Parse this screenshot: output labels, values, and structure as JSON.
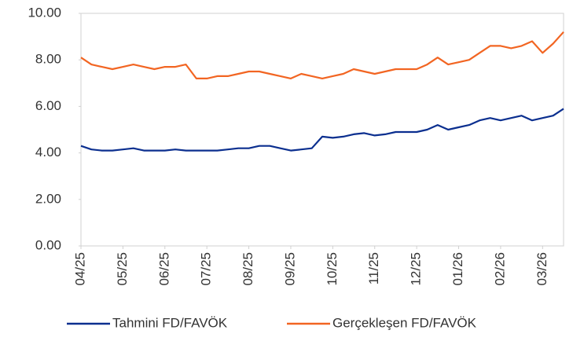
{
  "chart_data": {
    "type": "line",
    "categories": [
      "04/25",
      null,
      null,
      null,
      "05/25",
      null,
      null,
      null,
      "06/25",
      null,
      null,
      null,
      "07/25",
      null,
      null,
      null,
      "08/25",
      null,
      null,
      null,
      "09/25",
      null,
      null,
      null,
      "10/25",
      null,
      null,
      null,
      "11/25",
      null,
      null,
      null,
      "12/25",
      null,
      null,
      null,
      "01/26",
      null,
      null,
      null,
      "02/26",
      null,
      null,
      null,
      "03/26",
      null,
      null
    ],
    "series": [
      {
        "name": "Tahmini FD/FAVÖK",
        "color": "#0b2f8f",
        "values": [
          4.3,
          4.15,
          4.1,
          4.1,
          4.15,
          4.2,
          4.1,
          4.1,
          4.1,
          4.15,
          4.1,
          4.1,
          4.1,
          4.1,
          4.15,
          4.2,
          4.2,
          4.3,
          4.3,
          4.2,
          4.1,
          4.15,
          4.2,
          4.7,
          4.65,
          4.7,
          4.8,
          4.85,
          4.75,
          4.8,
          4.9,
          4.9,
          4.9,
          5.0,
          5.2,
          5.0,
          5.1,
          5.2,
          5.4,
          5.5,
          5.4,
          5.5,
          5.6,
          5.4,
          5.5,
          5.6,
          5.9
        ]
      },
      {
        "name": "Gerçekleşen FD/FAVÖK",
        "color": "#f26522",
        "values": [
          8.1,
          7.8,
          7.7,
          7.6,
          7.7,
          7.8,
          7.7,
          7.6,
          7.7,
          7.7,
          7.8,
          7.2,
          7.2,
          7.3,
          7.3,
          7.4,
          7.5,
          7.5,
          7.4,
          7.3,
          7.2,
          7.4,
          7.3,
          7.2,
          7.3,
          7.4,
          7.6,
          7.5,
          7.4,
          7.5,
          7.6,
          7.6,
          7.6,
          7.8,
          8.1,
          7.8,
          7.9,
          8.0,
          8.3,
          8.6,
          8.6,
          8.5,
          8.6,
          8.8,
          8.3,
          8.7,
          9.2
        ]
      }
    ],
    "ylim": [
      0,
      10
    ],
    "yticks": [
      {
        "value": 0,
        "label": "0.00"
      },
      {
        "value": 2,
        "label": "2.00"
      },
      {
        "value": 4,
        "label": "4.00"
      },
      {
        "value": 6,
        "label": "6.00"
      },
      {
        "value": 8,
        "label": "8.00"
      },
      {
        "value": 10,
        "label": "10.00"
      }
    ]
  }
}
